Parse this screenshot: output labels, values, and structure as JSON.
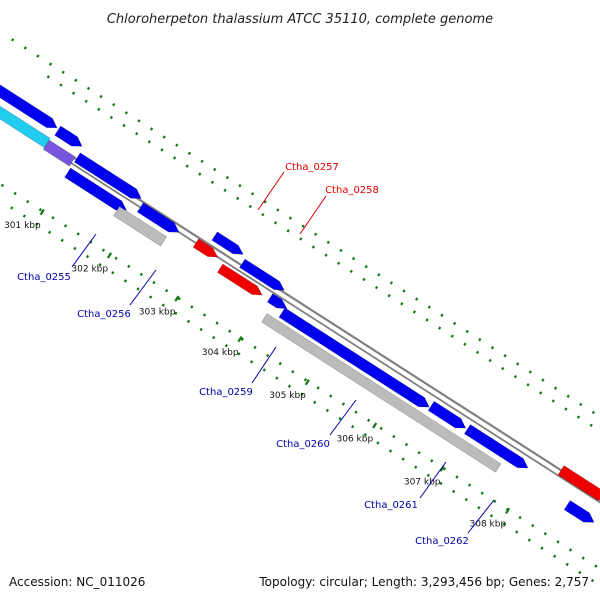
{
  "title": "Chloroherpeton thalassium ATCC 35110, complete genome",
  "footer": {
    "accession": "Accession: NC_011026",
    "summary": "Topology: circular; Length: 3,293,456 bp; Genes: 2,757"
  },
  "colors": {
    "backbone": "#808080",
    "forward_cds": "#0000ee",
    "reverse_cds": "#ee0000",
    "pseudo": "#bbbbbb",
    "rna": "#22ccee",
    "other": "#7755dd",
    "tick": "#117711",
    "label_forward": "#0000aa",
    "label_reverse": "#dd0000"
  },
  "ticks": [
    {
      "label": "301 kbp"
    },
    {
      "label": "302 kbp"
    },
    {
      "label": "303 kbp"
    },
    {
      "label": "304 kbp"
    },
    {
      "label": "305 kbp"
    },
    {
      "label": "306 kbp"
    },
    {
      "label": "307 kbp"
    },
    {
      "label": "308 kbp"
    }
  ],
  "genes": [
    {
      "label": "Ctha_0255",
      "strand": "reverse",
      "type": "cds"
    },
    {
      "label": "Ctha_0256",
      "strand": "reverse",
      "type": "pseudo"
    },
    {
      "label": "Ctha_0257",
      "strand": "forward",
      "type": "cds"
    },
    {
      "label": "Ctha_0258",
      "strand": "forward",
      "type": "cds"
    },
    {
      "label": "Ctha_0259",
      "strand": "reverse",
      "type": "cds"
    },
    {
      "label": "Ctha_0260",
      "strand": "reverse",
      "type": "cds"
    },
    {
      "label": "Ctha_0261",
      "strand": "reverse",
      "type": "cds"
    },
    {
      "label": "Ctha_0262",
      "strand": "reverse",
      "type": "pseudo"
    }
  ]
}
